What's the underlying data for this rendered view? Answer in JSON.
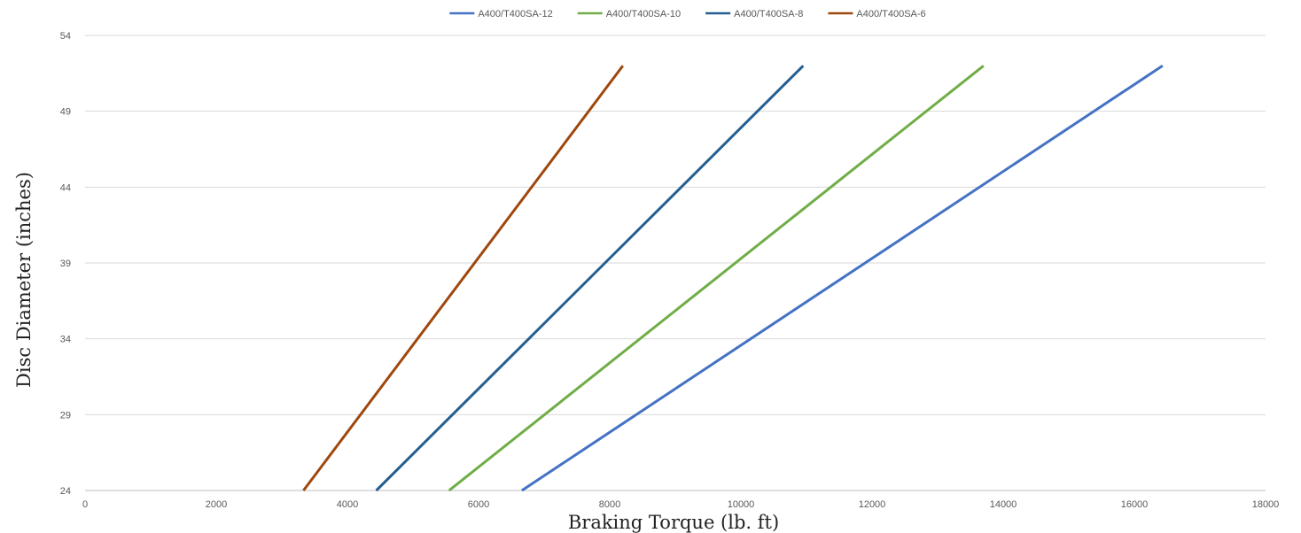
{
  "chart_data": {
    "type": "line",
    "title": "",
    "xlabel": "Braking Torque (lb. ft)",
    "ylabel": "Disc Diameter (inches)",
    "xlim": [
      0,
      18000
    ],
    "ylim": [
      24,
      54
    ],
    "xticks": [
      "0",
      "2000",
      "4000",
      "6000",
      "8000",
      "10000",
      "12000",
      "14000",
      "16000",
      "18000"
    ],
    "yticks": [
      "24",
      "29",
      "34",
      "39",
      "44",
      "49",
      "54"
    ],
    "grid": "horizontal",
    "legend_position": "top",
    "series": [
      {
        "name": "A400/T400SA-12",
        "color": "#4472c4",
        "points": [
          [
            6660,
            24
          ],
          [
            16430,
            52
          ]
        ]
      },
      {
        "name": "A400/T400SA-10",
        "color": "#70ad47",
        "points": [
          [
            5550,
            24
          ],
          [
            13700,
            52
          ]
        ]
      },
      {
        "name": "A400/T400SA-8",
        "color": "#255e91",
        "points": [
          [
            4440,
            24
          ],
          [
            10950,
            52
          ]
        ]
      },
      {
        "name": "A400/T400SA-6",
        "color": "#9e480e",
        "points": [
          [
            3330,
            24
          ],
          [
            8200,
            52
          ]
        ]
      }
    ]
  }
}
